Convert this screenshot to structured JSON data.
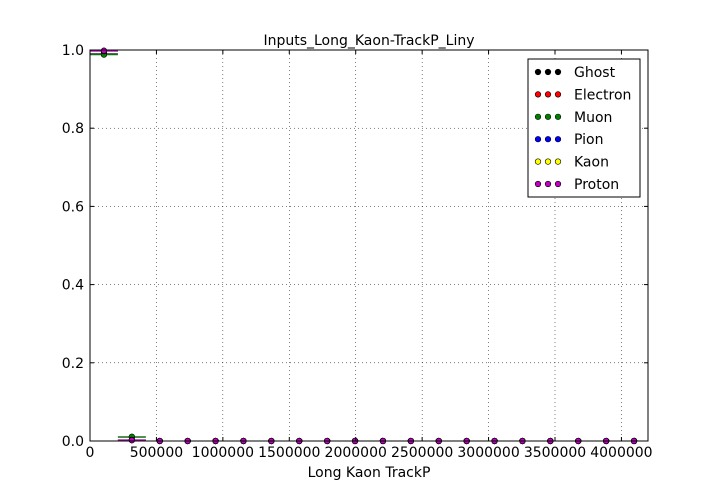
{
  "chart_data": {
    "type": "scatter",
    "title": "Inputs_Long_Kaon-TrackP_Liny",
    "xlabel": "Long Kaon TrackP",
    "ylabel": "",
    "xlim": [
      0,
      4200000
    ],
    "ylim": [
      0,
      1.0
    ],
    "xticks": [
      0,
      500000,
      1000000,
      1500000,
      2000000,
      2500000,
      3000000,
      3500000,
      4000000
    ],
    "xtick_labels": [
      "0",
      "500000",
      "1000000",
      "1500000",
      "2000000",
      "2500000",
      "3000000",
      "3500000",
      "4000000"
    ],
    "yticks": [
      0.0,
      0.2,
      0.4,
      0.6,
      0.8,
      1.0
    ],
    "ytick_labels": [
      "0.0",
      "0.2",
      "0.4",
      "0.6",
      "0.8",
      "1.0"
    ],
    "grid": true,
    "legend_position": "top-right",
    "bin_half_width": 105000,
    "x": [
      105000,
      315000,
      525000,
      735000,
      945000,
      1155000,
      1365000,
      1575000,
      1785000,
      1995000,
      2205000,
      2415000,
      2625000,
      2835000,
      3045000,
      3255000,
      3465000,
      3675000,
      3885000,
      4095000
    ],
    "series": [
      {
        "name": "Ghost",
        "color": "#000000",
        "values": [
          0.99,
          0.01,
          0.0,
          0.0,
          0.0,
          0.0,
          0.0,
          0.0,
          0.0,
          0.0,
          0.0,
          0.0,
          0.0,
          0.0,
          0.0,
          0.0,
          0.0,
          0.0,
          0.0,
          0.0
        ]
      },
      {
        "name": "Electron",
        "color": "#ff0000",
        "values": [
          0.997,
          0.003,
          0.0,
          0.0,
          0.0,
          0.0,
          0.0,
          0.0,
          0.0,
          0.0,
          0.0,
          0.0,
          0.0,
          0.0,
          0.0,
          0.0,
          0.0,
          0.0,
          0.0,
          0.0
        ]
      },
      {
        "name": "Muon",
        "color": "#008000",
        "values": [
          0.988,
          0.011,
          0.0,
          0.0,
          0.0,
          0.0,
          0.0,
          0.0,
          0.0,
          0.0,
          0.0,
          0.0,
          0.0,
          0.0,
          0.0,
          0.0,
          0.0,
          0.0,
          0.0,
          0.0
        ]
      },
      {
        "name": "Pion",
        "color": "#0000ff",
        "values": [
          0.997,
          0.003,
          0.0,
          0.0,
          0.0,
          0.0,
          0.0,
          0.0,
          0.0,
          0.0,
          0.0,
          0.0,
          0.0,
          0.0,
          0.0,
          0.0,
          0.0,
          0.0,
          0.0,
          0.0
        ]
      },
      {
        "name": "Kaon",
        "color": "#ffff00",
        "values": [
          0.998,
          0.002,
          0.0,
          0.0,
          0.0,
          0.0,
          0.0,
          0.0,
          0.0,
          0.0,
          0.0,
          0.0,
          0.0,
          0.0,
          0.0,
          0.0,
          0.0,
          0.0,
          0.0,
          0.0
        ]
      },
      {
        "name": "Proton",
        "color": "#bf00bf",
        "values": [
          0.998,
          0.002,
          0.0,
          0.0,
          0.0,
          0.0,
          0.0,
          0.0,
          0.0,
          0.0,
          0.0,
          0.0,
          0.0,
          0.0,
          0.0,
          0.0,
          0.0,
          0.0,
          0.0,
          0.0
        ]
      }
    ]
  }
}
